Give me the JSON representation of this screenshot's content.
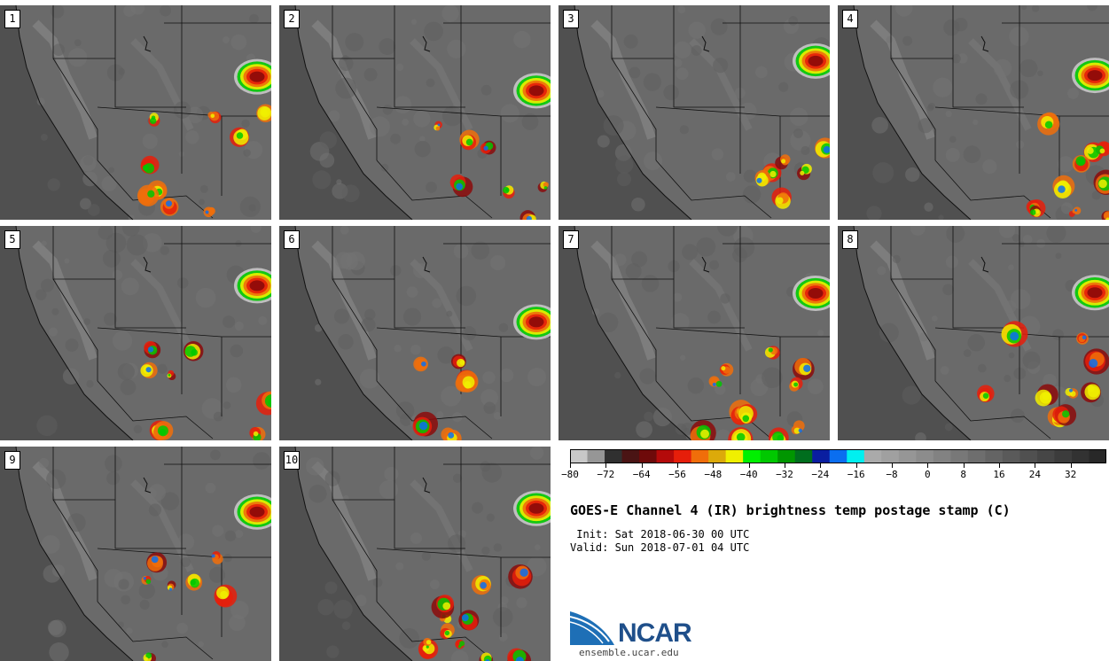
{
  "chart_data": {
    "type": "heatmap",
    "title": "GOES-E Channel 4 (IR) brightness temp postage stamp (C)",
    "init": "Init: Sat 2018-06-30 00 UTC",
    "valid": "Valid: Sun 2018-07-01 04 UTC",
    "members": [
      "1",
      "2",
      "3",
      "4",
      "5",
      "6",
      "7",
      "8",
      "9",
      "10"
    ],
    "colorbar": {
      "unit": "C",
      "range": [
        -80,
        40
      ],
      "ticks": [
        -80,
        -72,
        -64,
        -56,
        -48,
        -40,
        -32,
        -24,
        -16,
        -8,
        0,
        8,
        16,
        24,
        32
      ],
      "tick_labels": [
        "−80",
        "−72",
        "−64",
        "−56",
        "−48",
        "−40",
        "−32",
        "−24",
        "−16",
        "−8",
        "0",
        "8",
        "16",
        "24",
        "32"
      ],
      "colors": [
        "#c8c8c8",
        "#969696",
        "#303030",
        "#4a1414",
        "#6e0a0a",
        "#b40a0a",
        "#e61e0a",
        "#f06e0a",
        "#dcaa0a",
        "#f0f000",
        "#00f000",
        "#00c800",
        "#009600",
        "#006e1e",
        "#0a1ea0",
        "#0a6ef0",
        "#00f0f0",
        "#aaaaaa",
        "#a0a0a0",
        "#969696",
        "#8c8c8c",
        "#828282",
        "#787878",
        "#6e6e6e",
        "#646464",
        "#5a5a5a",
        "#505050",
        "#464646",
        "#3c3c3c",
        "#323232",
        "#282828"
      ]
    }
  },
  "branding": {
    "logo_text": "NCAR",
    "url": "ensemble.ucar.edu"
  }
}
